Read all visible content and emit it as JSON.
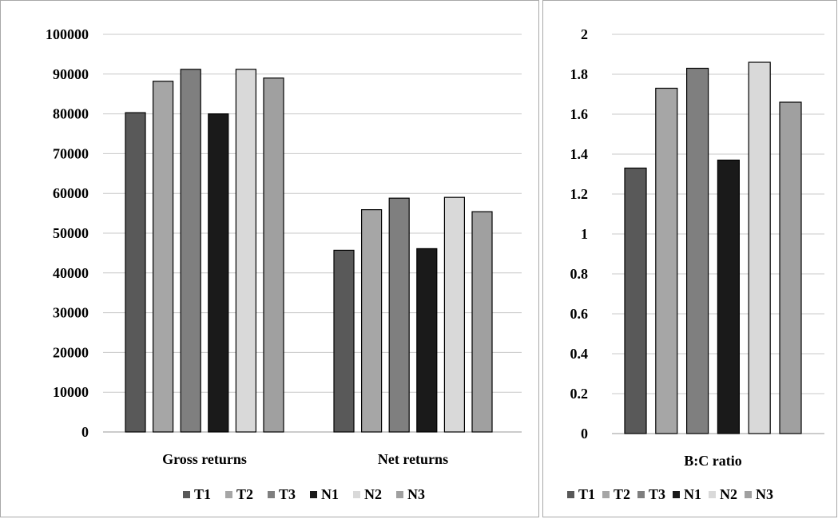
{
  "legend": [
    "T1",
    "T2",
    "T3",
    "N1",
    "N2",
    "N3"
  ],
  "colors": {
    "T1": "#595959",
    "T2": "#a6a6a6",
    "T3": "#7f7f7f",
    "N1": "#1a1a1a",
    "N2": "#d9d9d9",
    "N3": "#a0a0a0",
    "grid": "#c8c8c8"
  },
  "chart_data": [
    {
      "type": "bar",
      "categories": [
        "Gross returns",
        "Net returns"
      ],
      "series": [
        {
          "name": "T1",
          "values": [
            80300,
            45700
          ]
        },
        {
          "name": "T2",
          "values": [
            88200,
            55900
          ]
        },
        {
          "name": "T3",
          "values": [
            91200,
            58800
          ]
        },
        {
          "name": "N1",
          "values": [
            80000,
            46100
          ]
        },
        {
          "name": "N2",
          "values": [
            91200,
            59000
          ]
        },
        {
          "name": "N3",
          "values": [
            89000,
            55400
          ]
        }
      ],
      "yticks": [
        "0",
        "10000",
        "20000",
        "30000",
        "40000",
        "50000",
        "60000",
        "70000",
        "80000",
        "90000",
        "100000"
      ],
      "ylim": [
        0,
        100000
      ],
      "grid": true,
      "legend_position": "bottom"
    },
    {
      "type": "bar",
      "categories": [
        "B:C ratio"
      ],
      "series": [
        {
          "name": "T1",
          "values": [
            1.33
          ]
        },
        {
          "name": "T2",
          "values": [
            1.73
          ]
        },
        {
          "name": "T3",
          "values": [
            1.83
          ]
        },
        {
          "name": "N1",
          "values": [
            1.37
          ]
        },
        {
          "name": "N2",
          "values": [
            1.86
          ]
        },
        {
          "name": "N3",
          "values": [
            1.66
          ]
        }
      ],
      "yticks": [
        "0",
        "0.2",
        "0.4",
        "0.6",
        "0.8",
        "1",
        "1.2",
        "1.4",
        "1.6",
        "1.8",
        "2"
      ],
      "ylim": [
        0,
        2
      ],
      "grid": true,
      "legend_position": "bottom"
    }
  ]
}
